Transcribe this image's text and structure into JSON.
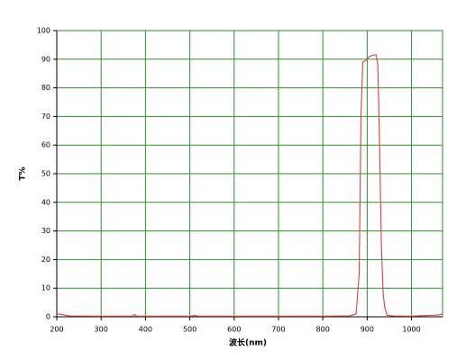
{
  "chart_data": {
    "type": "line",
    "x_label": "波长(nm)",
    "y_label": "T%",
    "x": [
      200,
      210,
      230,
      300,
      370,
      375,
      380,
      500,
      510,
      520,
      600,
      800,
      860,
      875,
      882,
      886,
      890,
      897,
      900,
      905,
      915,
      920,
      924,
      928,
      932,
      936,
      940,
      945,
      960,
      1000,
      1060,
      1070
    ],
    "values": [
      1,
      0.8,
      0.3,
      0.2,
      0.2,
      0.8,
      0.2,
      0.2,
      0.5,
      0.2,
      0.2,
      0.2,
      0.3,
      1,
      15,
      70,
      89,
      89.5,
      90,
      91,
      91.5,
      91.5,
      88,
      60,
      25,
      8,
      3,
      0.5,
      0.3,
      0.2,
      0.6,
      1
    ],
    "color": "#d9403a",
    "xlim": [
      200,
      1070
    ],
    "ylim": [
      0,
      100
    ],
    "xticks": [
      200,
      300,
      400,
      500,
      600,
      700,
      800,
      900,
      1000
    ],
    "yticks": [
      0,
      10,
      20,
      30,
      40,
      50,
      60,
      70,
      80,
      90,
      100
    ],
    "grid": true
  }
}
